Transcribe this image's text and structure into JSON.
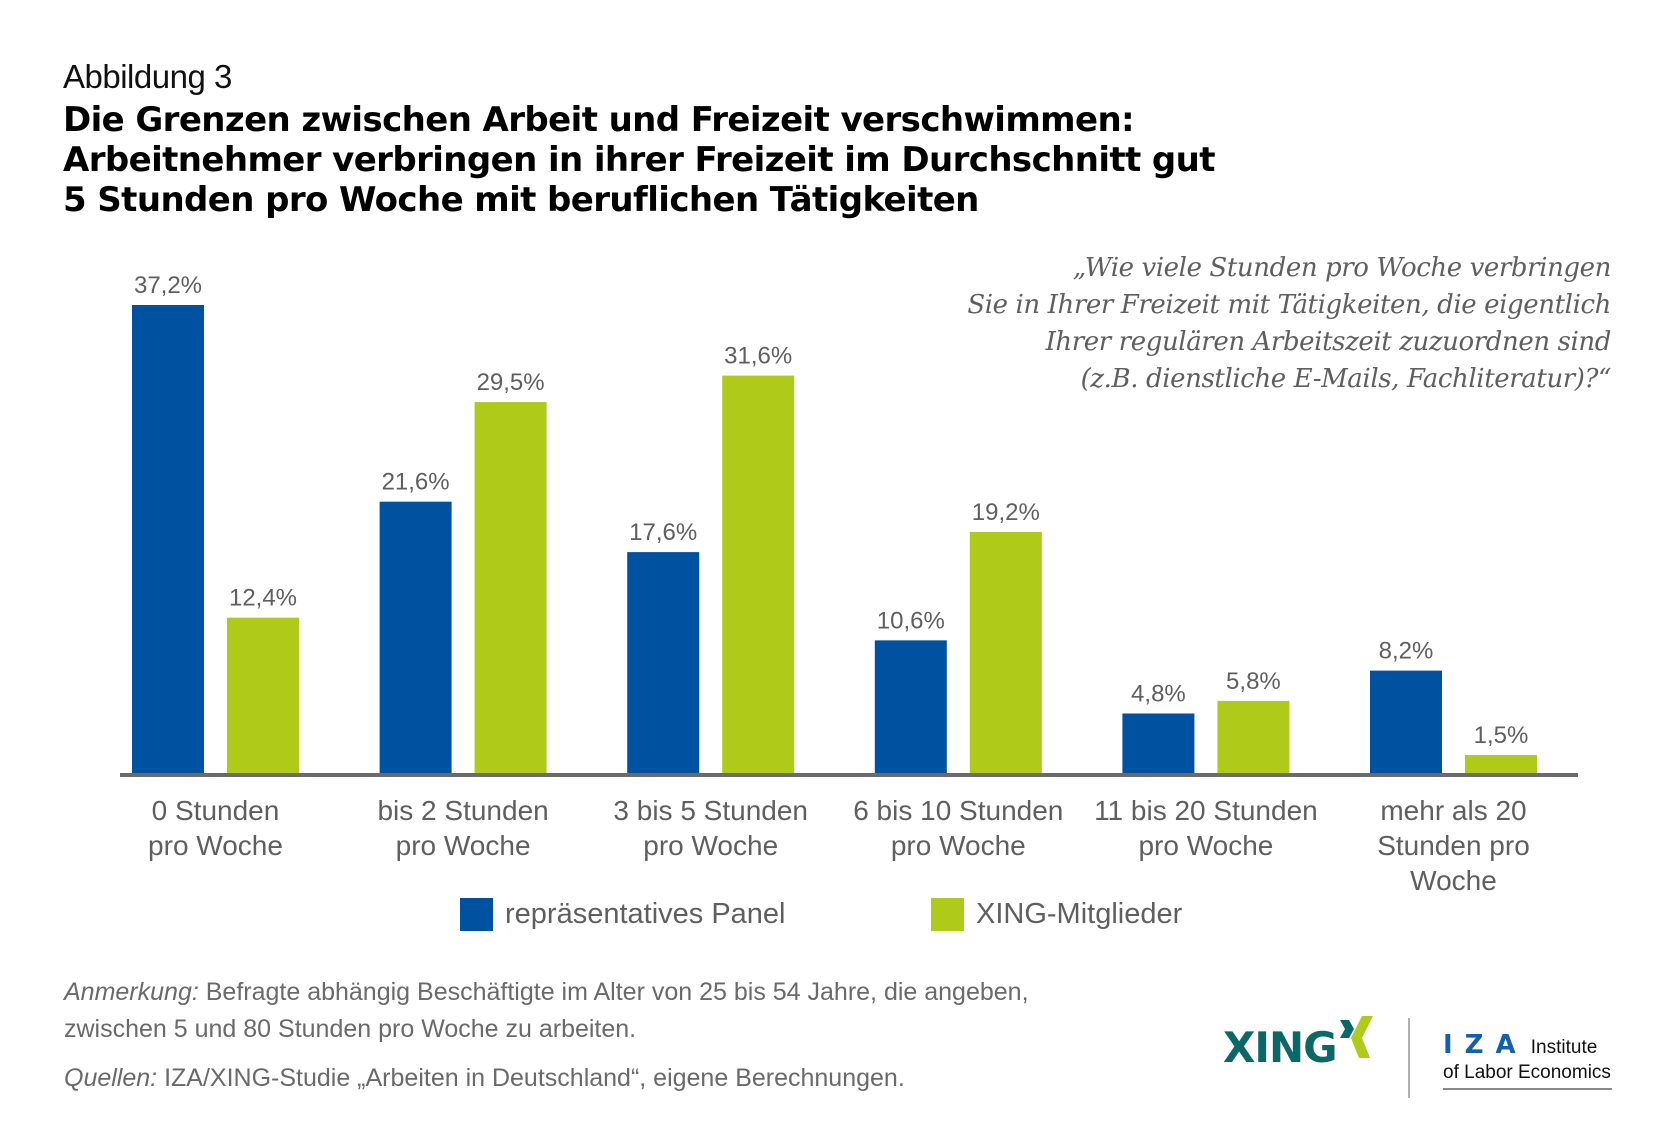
{
  "header": {
    "figure_label": "Abbildung 3",
    "title_lines": [
      "Die Grenzen zwischen Arbeit und Freizeit verschwimmen:",
      "Arbeitnehmer verbringen in ihrer Freizeit im Durchschnitt gut",
      "5 Stunden pro Woche mit beruflichen Tätigkeiten"
    ]
  },
  "question": {
    "lines": [
      "„Wie viele Stunden pro Woche verbringen",
      "Sie in Ihrer Freizeit mit Tätigkeiten, die eigentlich",
      "Ihrer regulären Arbeitszeit zuzuordnen sind",
      "(z.B. dienstliche E-Mails, Fachliteratur)?“"
    ]
  },
  "colors": {
    "panel": "#0052a0",
    "xing": "#afca19",
    "axis": "#6b6b6b",
    "label_text": "#5f5f5f"
  },
  "chart_data": {
    "type": "bar",
    "title": "Die Grenzen zwischen Arbeit und Freizeit verschwimmen",
    "xlabel": "",
    "ylabel": "",
    "ylim": [
      0,
      37.2
    ],
    "grid": false,
    "legend_position": "bottom",
    "categories": [
      [
        "0 Stunden",
        "pro Woche"
      ],
      [
        "bis 2 Stunden",
        "pro Woche"
      ],
      [
        "3 bis 5 Stunden",
        "pro Woche"
      ],
      [
        "6 bis 10 Stunden",
        "pro Woche"
      ],
      [
        "11 bis 20 Stunden",
        "pro Woche"
      ],
      [
        "mehr als 20",
        "Stunden pro",
        "Woche"
      ]
    ],
    "series": [
      {
        "name": "repräsentatives Panel",
        "color": "#0052a0",
        "values": [
          37.2,
          21.6,
          17.6,
          10.6,
          4.8,
          8.2
        ],
        "labels": [
          "37,2%",
          "21,6%",
          "17,6%",
          "10,6%",
          "4,8%",
          "8,2%"
        ]
      },
      {
        "name": "XING-Mitglieder",
        "color": "#afca19",
        "values": [
          12.4,
          29.5,
          31.6,
          19.2,
          5.8,
          1.5
        ],
        "labels": [
          "12,4%",
          "29,5%",
          "31,6%",
          "19,2%",
          "5,8%",
          "1,5%"
        ]
      }
    ]
  },
  "legend": {
    "items": [
      {
        "label": "repräsentatives Panel",
        "color": "#0052a0"
      },
      {
        "label": "XING-Mitglieder",
        "color": "#afca19"
      }
    ]
  },
  "notes": {
    "remark_label": "Anmerkung:",
    "remark_text_line1": " Befragte abhängig Beschäftigte im Alter von 25 bis 54 Jahre, die angeben,",
    "remark_text_line2": "zwischen 5 und 80 Stunden pro Woche zu arbeiten.",
    "source_label": "Quellen:",
    "source_text": " IZA/XING-Studie „Arbeiten in Deutschland“, eigene Berechnungen."
  },
  "logos": {
    "xing_text": "XING",
    "iza_letters": "IZA",
    "iza_line1": "Institute",
    "iza_line2": "of Labor Economics"
  }
}
